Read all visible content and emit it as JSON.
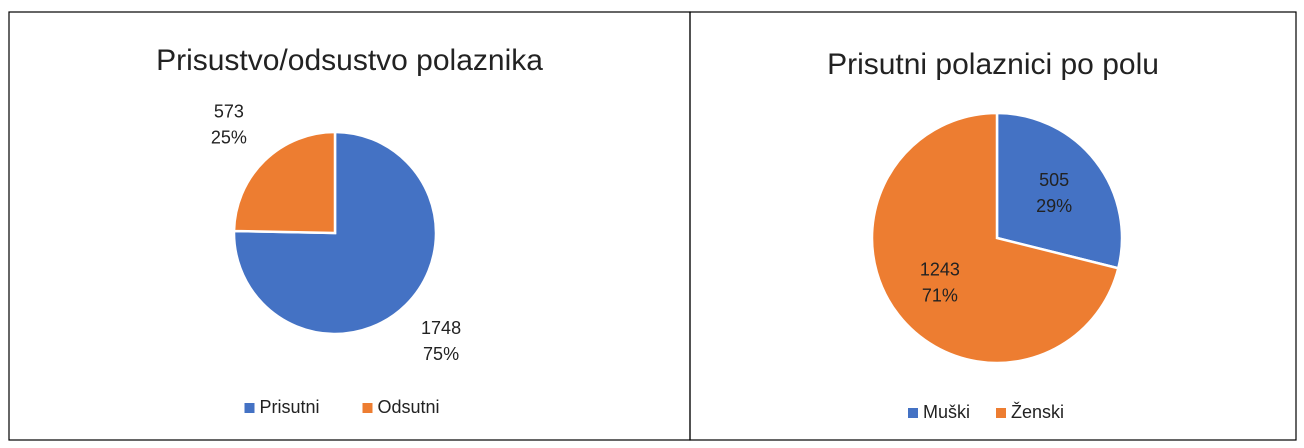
{
  "chart_data": [
    {
      "type": "pie",
      "title": "Prisustvo/odsustvo polaznika",
      "categories": [
        "Prisutni",
        "Odsutni"
      ],
      "values": [
        1748,
        573
      ],
      "percent_labels": [
        "75%",
        "25%"
      ],
      "colors": [
        "#4472c4",
        "#ed7d31"
      ],
      "legend": "bottom"
    },
    {
      "type": "pie",
      "title": "Prisutni polaznici po polu",
      "categories": [
        "Muški",
        "Ženski"
      ],
      "values": [
        505,
        1243
      ],
      "percent_labels": [
        "29%",
        "71%"
      ],
      "colors": [
        "#4472c4",
        "#ed7d31"
      ],
      "legend": "bottom"
    }
  ]
}
